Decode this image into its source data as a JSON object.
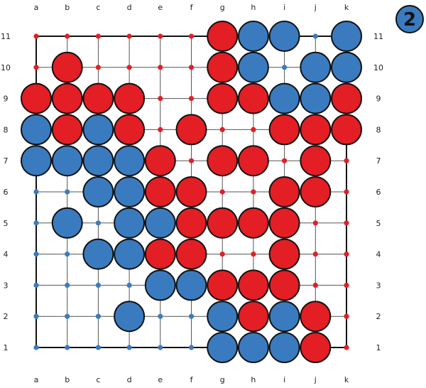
{
  "colors": {
    "red": "#e31e24",
    "blue": "#3a7bbf",
    "grid": "#555555",
    "border": "#111111",
    "outline": "#111111"
  },
  "board": {
    "columns": [
      "a",
      "b",
      "c",
      "d",
      "e",
      "f",
      "g",
      "h",
      "i",
      "j",
      "k"
    ],
    "rows": [
      "11",
      "10",
      "9",
      "8",
      "7",
      "6",
      "5",
      "4",
      "3",
      "2",
      "1"
    ],
    "cells": [
      [
        "r.",
        "r.",
        "r.",
        "r.",
        "r.",
        "r.",
        "R",
        "B",
        "B",
        "b.",
        "B"
      ],
      [
        "r.",
        "R",
        "r.",
        "r.",
        "r.",
        "r.",
        "R",
        "B",
        "b.",
        "B",
        "B"
      ],
      [
        "R",
        "R",
        "R",
        "R",
        "r.",
        "r.",
        "R",
        "R",
        "B",
        "B",
        "R"
      ],
      [
        "B",
        "R",
        "B",
        "R",
        "r.",
        "R",
        "r.",
        "r.",
        "R",
        "R",
        "R"
      ],
      [
        "B",
        "B",
        "B",
        "B",
        "R",
        "r.",
        "R",
        "R",
        "r.",
        "R",
        "r."
      ],
      [
        "b.",
        "b.",
        "B",
        "B",
        "R",
        "R",
        "r.",
        "r.",
        "R",
        "R",
        "r."
      ],
      [
        "b.",
        "B",
        "b.",
        "B",
        "B",
        "R",
        "R",
        "R",
        "R",
        "r.",
        "r."
      ],
      [
        "b.",
        "b.",
        "B",
        "B",
        "R",
        "R",
        "r.",
        "r.",
        "R",
        "r.",
        "r."
      ],
      [
        "b.",
        "b.",
        "b.",
        "b.",
        "B",
        "B",
        "R",
        "R",
        "R",
        "r.",
        "r."
      ],
      [
        "b.",
        "b.",
        "b.",
        "B",
        "b.",
        "b.",
        "B",
        "R",
        "B",
        "R",
        "r."
      ],
      [
        "b.",
        "b.",
        "b.",
        "b.",
        "b.",
        "b.",
        "B",
        "B",
        "B",
        "R",
        "r."
      ]
    ]
  },
  "badge": {
    "label": "2"
  }
}
